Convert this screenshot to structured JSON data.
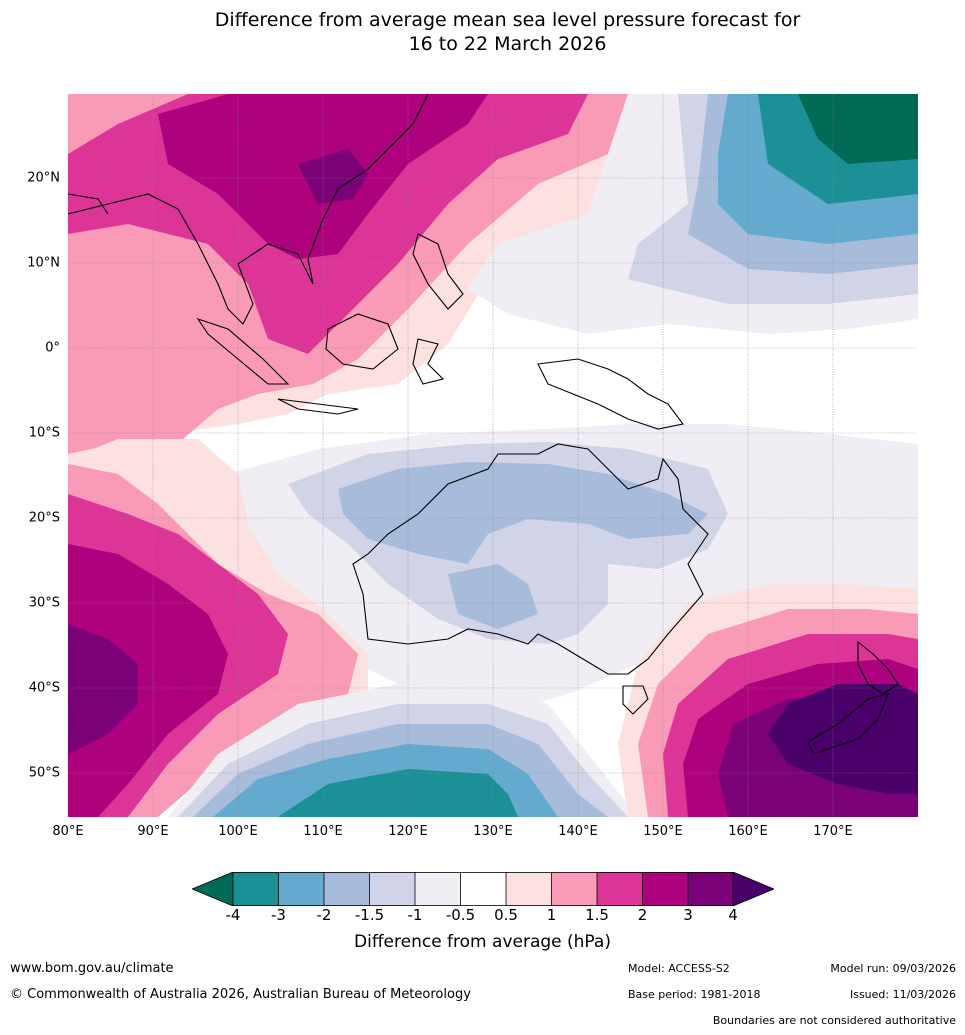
{
  "title": {
    "line1": "Difference from average mean sea level pressure forecast for",
    "line2": "16 to 22 March 2026"
  },
  "map": {
    "lat_labels": [
      "20°N",
      "10°N",
      "0°",
      "10°S",
      "20°S",
      "30°S",
      "40°S",
      "50°S"
    ],
    "lon_labels": [
      "80°E",
      "90°E",
      "100°E",
      "110°E",
      "120°E",
      "130°E",
      "140°E",
      "150°E",
      "160°E",
      "170°E"
    ],
    "colors": {
      "m4": "#006a56",
      "m3": "#1b9097",
      "m2": "#64a9ce",
      "m15": "#a6bcda",
      "m1": "#d1d3e7",
      "m05": "#f1edf5",
      "zero": "#ffffff",
      "p05": "#fde0e0",
      "p1": "#f99bb6",
      "p15": "#dd3597",
      "p2": "#ae017e",
      "p3": "#7a0177",
      "p4": "#49006a"
    }
  },
  "colorbar": {
    "ticks": [
      "-4",
      "-3",
      "-2",
      "-1.5",
      "-1",
      "-0.5",
      "0.5",
      "1",
      "1.5",
      "2",
      "3",
      "4"
    ],
    "label": "Difference from average (hPa)"
  },
  "footer": {
    "url": "www.bom.gov.au/climate",
    "copyright": "© Commonwealth of Australia 2026, Australian Bureau of Meteorology",
    "model": "Model: ACCESS-S2",
    "base_period": "Base period: 1981-2018",
    "model_run": "Model run: 09/03/2026",
    "issued": "Issued: 11/03/2026",
    "boundaries": "Boundaries are not considered authoritative"
  }
}
